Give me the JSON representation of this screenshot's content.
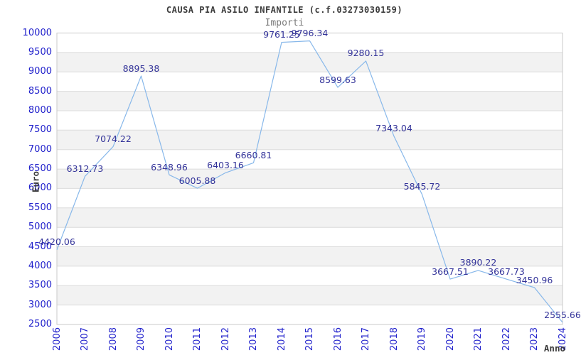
{
  "chart_data": {
    "type": "line",
    "title": "CAUSA PIA ASILO INFANTILE (c.f.03273030159)",
    "subtitle": "Importi",
    "xlabel": "Anno",
    "ylabel": "Euro",
    "categories": [
      "2006",
      "2007",
      "2008",
      "2009",
      "2010",
      "2011",
      "2012",
      "2013",
      "2014",
      "2015",
      "2016",
      "2017",
      "2018",
      "2019",
      "2020",
      "2021",
      "2022",
      "2023",
      "2024"
    ],
    "series": [
      {
        "name": "Importi",
        "values": [
          4420.06,
          6312.73,
          7074.22,
          8895.38,
          6348.96,
          6005.88,
          6403.16,
          6660.81,
          9761.25,
          9796.34,
          8599.63,
          9280.15,
          7343.04,
          5845.72,
          3667.51,
          3890.22,
          3667.73,
          3450.96,
          2555.66
        ]
      }
    ],
    "ylim": [
      2500,
      10000
    ],
    "ytick_step": 500,
    "yticks": [
      2500,
      3000,
      3500,
      4000,
      4500,
      5000,
      5500,
      6000,
      6500,
      7000,
      7500,
      8000,
      8500,
      9000,
      9500,
      10000
    ],
    "grid": "horizontal-with-alternating-bands",
    "legend": "none",
    "point_labels_shown": true,
    "colors": {
      "line": "#88b8ea",
      "tick_label": "#2222cc",
      "point_label": "#333399",
      "title": "#3b3b3b",
      "subtitle": "#7b7b7b",
      "axis_title": "#3b3b3b",
      "band": "#f2f2f2",
      "grid": "#dcdcdc",
      "border": "#c9c9c9",
      "background": "#ffffff"
    }
  }
}
